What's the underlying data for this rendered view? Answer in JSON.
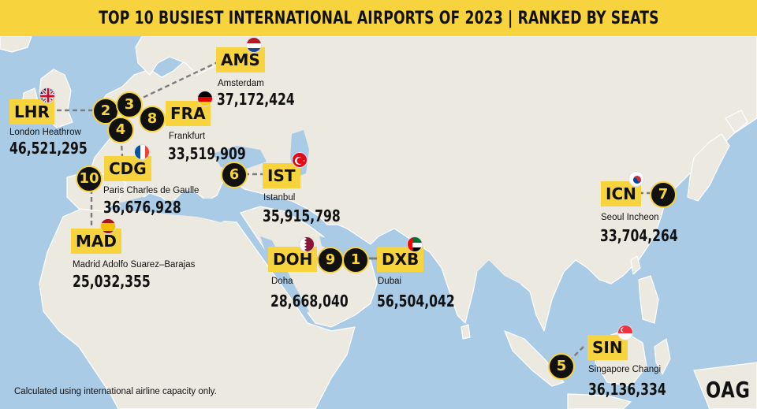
{
  "title": "TOP 10 BUSIEST INTERNATIONAL AIRPORTS OF 2023 | RANKED BY SEATS",
  "footnote": "Calculated using international airline capacity only.",
  "logo_text": "OAG",
  "colors": {
    "accent_yellow": "#f7d33d",
    "badge_black": "#111111",
    "ocean": "#a9cbe6",
    "land": "#ece9e1",
    "border": "#ffffff",
    "connector": "#7c7c7c"
  },
  "airports": [
    {
      "code": "LHR",
      "rank": "2",
      "name": "London Heathrow",
      "seats": "46,521,295",
      "flag": "uk"
    },
    {
      "code": "AMS",
      "rank": "3",
      "name": "Amsterdam",
      "seats": "37,172,424",
      "flag": "nl"
    },
    {
      "code": "FRA",
      "rank": "8",
      "name": "Frankfurt",
      "seats": "33,519,909",
      "flag": "de"
    },
    {
      "code": "CDG",
      "rank": "4",
      "name": "Paris Charles de Gaulle",
      "seats": "36,676,928",
      "flag": "fr"
    },
    {
      "code": "MAD",
      "rank": "10",
      "name": "Madrid Adolfo Suarez–Barajas",
      "seats": "25,032,355",
      "flag": "es"
    },
    {
      "code": "IST",
      "rank": "6",
      "name": "Istanbul",
      "seats": "35,915,798",
      "flag": "tr"
    },
    {
      "code": "DOH",
      "rank": "9",
      "name": "Doha",
      "seats": "28,668,040",
      "flag": "qa"
    },
    {
      "code": "DXB",
      "rank": "1",
      "name": "Dubai",
      "seats": "56,504,042",
      "flag": "ae"
    },
    {
      "code": "ICN",
      "rank": "7",
      "name": "Seoul Incheon",
      "seats": "33,704,264",
      "flag": "kr"
    },
    {
      "code": "SIN",
      "rank": "5",
      "name": "Singapore Changi",
      "seats": "36,136,334",
      "flag": "sg"
    }
  ]
}
